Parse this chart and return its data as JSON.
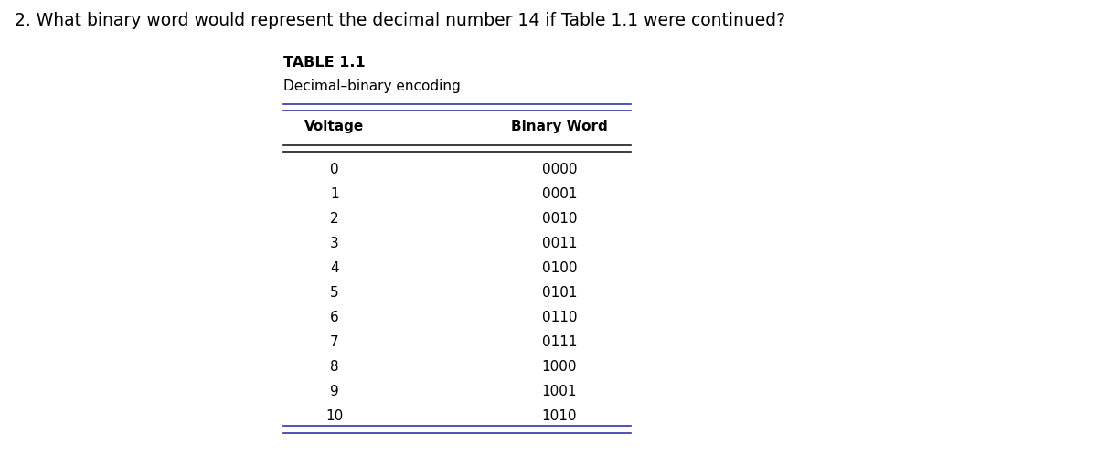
{
  "question": "2. What binary word would represent the decimal number 14 if Table 1.1 were continued?",
  "table_title": "TABLE 1.1",
  "table_subtitle": "Decimal–binary encoding",
  "col1_header": "Voltage",
  "col2_header": "Binary Word",
  "rows": [
    [
      "0",
      "0000"
    ],
    [
      "1",
      "0001"
    ],
    [
      "2",
      "0010"
    ],
    [
      "3",
      "0011"
    ],
    [
      "4",
      "0100"
    ],
    [
      "5",
      "0101"
    ],
    [
      "6",
      "0110"
    ],
    [
      "7",
      "0111"
    ],
    [
      "8",
      "1000"
    ],
    [
      "9",
      "1001"
    ],
    [
      "10",
      "1010"
    ]
  ],
  "bg_color": "#ffffff",
  "text_color": "#000000",
  "line_color": "#1a1a1a",
  "blue_line_color": "#3333aa",
  "question_fontsize": 13.5,
  "title_fontsize": 11.5,
  "subtitle_fontsize": 11,
  "header_fontsize": 11,
  "data_fontsize": 11,
  "fig_width": 12.0,
  "fig_height": 5.21
}
